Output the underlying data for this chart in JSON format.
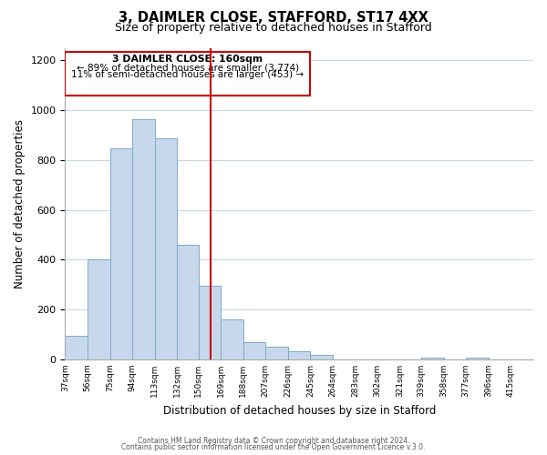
{
  "title": "3, DAIMLER CLOSE, STAFFORD, ST17 4XX",
  "subtitle": "Size of property relative to detached houses in Stafford",
  "xlabel": "Distribution of detached houses by size in Stafford",
  "ylabel": "Number of detached properties",
  "categories": [
    "37sqm",
    "56sqm",
    "75sqm",
    "94sqm",
    "113sqm",
    "132sqm",
    "150sqm",
    "169sqm",
    "188sqm",
    "207sqm",
    "226sqm",
    "245sqm",
    "264sqm",
    "283sqm",
    "302sqm",
    "321sqm",
    "339sqm",
    "358sqm",
    "377sqm",
    "396sqm",
    "415sqm"
  ],
  "bar_color": "#c8d8ec",
  "bar_edge_color": "#7aaaca",
  "grid_color": "#c8d8ec",
  "marker_line_color": "#cc0000",
  "annotation_box_edge": "#cc0000",
  "annotation_line1": "3 DAIMLER CLOSE: 160sqm",
  "annotation_line2": "← 89% of detached houses are smaller (3,774)",
  "annotation_line3": "11% of semi-detached houses are larger (453) →",
  "footer_line1": "Contains HM Land Registry data © Crown copyright and database right 2024.",
  "footer_line2": "Contains public sector information licensed under the Open Government Licence v.3.0.",
  "ylim": [
    0,
    1250
  ],
  "yticks": [
    0,
    200,
    400,
    600,
    800,
    1000,
    1200
  ],
  "bin_edges": [
    37,
    56,
    75,
    94,
    113,
    132,
    150,
    169,
    188,
    207,
    226,
    245,
    264,
    283,
    302,
    321,
    339,
    358,
    377,
    396,
    415
  ],
  "bar_heights": [
    95,
    400,
    845,
    965,
    885,
    460,
    295,
    160,
    70,
    52,
    33,
    17,
    0,
    0,
    0,
    0,
    8,
    0,
    8,
    0
  ]
}
